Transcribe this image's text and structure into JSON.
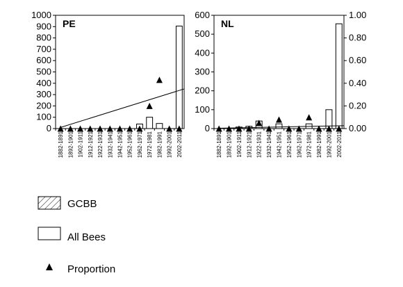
{
  "chart_data": [
    {
      "type": "bar",
      "panel_label": "PE",
      "categories": [
        "1882-1891",
        "1892-1901",
        "1902-1911",
        "1912-1921",
        "1922-1931",
        "1932-1941",
        "1942-1951",
        "1952-1961",
        "1962-1971",
        "1972-1981",
        "1982-1991",
        "1992-2001",
        "2002-2011"
      ],
      "ylim": [
        0,
        1000
      ],
      "yticks": [
        0,
        100,
        200,
        300,
        400,
        500,
        600,
        700,
        800,
        900,
        1000
      ],
      "right_axis": false,
      "proportion_ylim": [
        0,
        1
      ],
      "series": [
        {
          "name": "GCBB",
          "values": [
            0,
            0,
            0,
            0,
            0,
            0,
            0,
            0,
            0,
            0,
            0,
            0,
            0
          ]
        },
        {
          "name": "All Bees",
          "values": [
            0,
            0,
            0,
            0,
            0,
            0,
            0,
            0,
            40,
            100,
            45,
            0,
            905
          ]
        },
        {
          "name": "Proportion",
          "values": [
            0,
            0,
            0,
            0,
            0,
            0,
            0,
            0,
            0,
            0.2,
            0.43,
            0,
            0
          ]
        }
      ],
      "trendline": {
        "y_start": 10,
        "y_end": 350
      }
    },
    {
      "type": "bar",
      "panel_label": "NL",
      "categories": [
        "1882-1891",
        "1892-1901",
        "1902-1911",
        "1912-1921",
        "1922-1931",
        "1932-1941",
        "1942-1951",
        "1952-1961",
        "1962-1971",
        "1972-1981",
        "1982-1991",
        "1992-2001",
        "2002-2011"
      ],
      "ylim": [
        0,
        600
      ],
      "yticks": [
        0,
        100,
        200,
        300,
        400,
        500,
        600
      ],
      "right_axis": true,
      "proportion_ylim": [
        0,
        1
      ],
      "proportion_ticks": [
        "0.00",
        "0.20",
        "0.40",
        "0.60",
        "0.80",
        "1.00"
      ],
      "series": [
        {
          "name": "GCBB",
          "values": [
            0,
            0,
            0,
            0,
            0,
            0,
            0,
            0,
            0,
            0,
            0,
            0,
            0
          ]
        },
        {
          "name": "All Bees",
          "values": [
            0,
            0,
            8,
            12,
            40,
            0,
            25,
            0,
            0,
            25,
            0,
            100,
            555
          ]
        },
        {
          "name": "Proportion",
          "values": [
            0,
            0,
            0,
            0,
            0.05,
            0,
            0.08,
            0,
            0,
            0.1,
            0,
            0,
            0
          ]
        }
      ],
      "trendline": {
        "y_start": 2,
        "y_end": 15
      }
    }
  ],
  "legend": {
    "gcbb": "GCBB",
    "all_bees": "All Bees",
    "proportion": "Proportion"
  }
}
